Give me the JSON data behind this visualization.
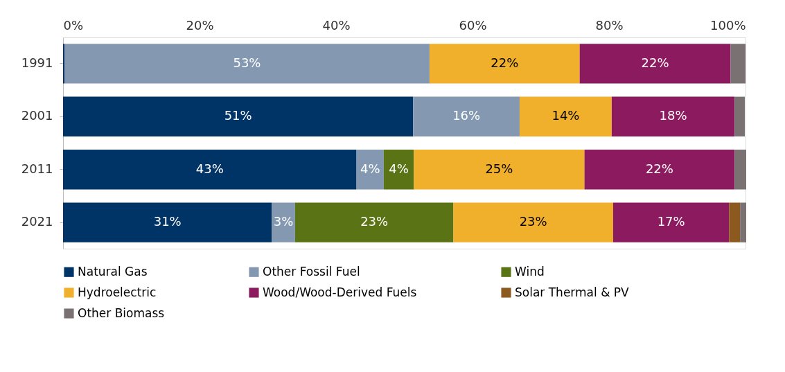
{
  "chart_data": {
    "type": "bar",
    "orientation": "horizontal",
    "stacked": true,
    "categories": [
      "1991",
      "2001",
      "2011",
      "2021"
    ],
    "series": [
      {
        "name": "Natural Gas",
        "color": "#003366",
        "values": [
          0.2,
          51.3,
          43,
          30.6
        ],
        "value_labels": [
          null,
          "51%",
          "43%",
          "31%"
        ]
      },
      {
        "name": "Other Fossil Fuel",
        "color": "#8499b1",
        "values": [
          53.5,
          15.6,
          4,
          3.4
        ],
        "value_labels": [
          "53%",
          "16%",
          "4%",
          "3%"
        ]
      },
      {
        "name": "Wind",
        "color": "#5a7314",
        "values": [
          0,
          0,
          4.4,
          23.2
        ],
        "value_labels": [
          null,
          null,
          "4%",
          "23%"
        ]
      },
      {
        "name": "Hydroelectric",
        "color": "#f0b02c",
        "values": [
          22,
          13.5,
          25,
          23.4
        ],
        "value_labels": [
          "22%",
          "14%",
          "25%",
          "23%"
        ]
      },
      {
        "name": "Wood/Wood-Derived Fuels",
        "color": "#8b1a5e",
        "values": [
          22.1,
          18,
          22,
          17
        ],
        "value_labels": [
          "22%",
          "18%",
          "22%",
          "17%"
        ]
      },
      {
        "name": "Solar Thermal & PV",
        "color": "#8c5a1e",
        "values": [
          0,
          0,
          0,
          1.6
        ],
        "value_labels": [
          null,
          null,
          null,
          null
        ]
      },
      {
        "name": "Other Biomass",
        "color": "#7a7272",
        "values": [
          2.2,
          1.5,
          1.7,
          0.9
        ],
        "value_labels": [
          null,
          null,
          null,
          null
        ]
      }
    ],
    "xlim": [
      0,
      100
    ],
    "xticks": [
      {
        "value": 0,
        "label": "0%"
      },
      {
        "value": 20,
        "label": "20%"
      },
      {
        "value": 40,
        "label": "40%"
      },
      {
        "value": 60,
        "label": "60%"
      },
      {
        "value": 80,
        "label": "80%"
      },
      {
        "value": 100,
        "label": "100%"
      }
    ],
    "grid": false,
    "legend": "bottom"
  }
}
